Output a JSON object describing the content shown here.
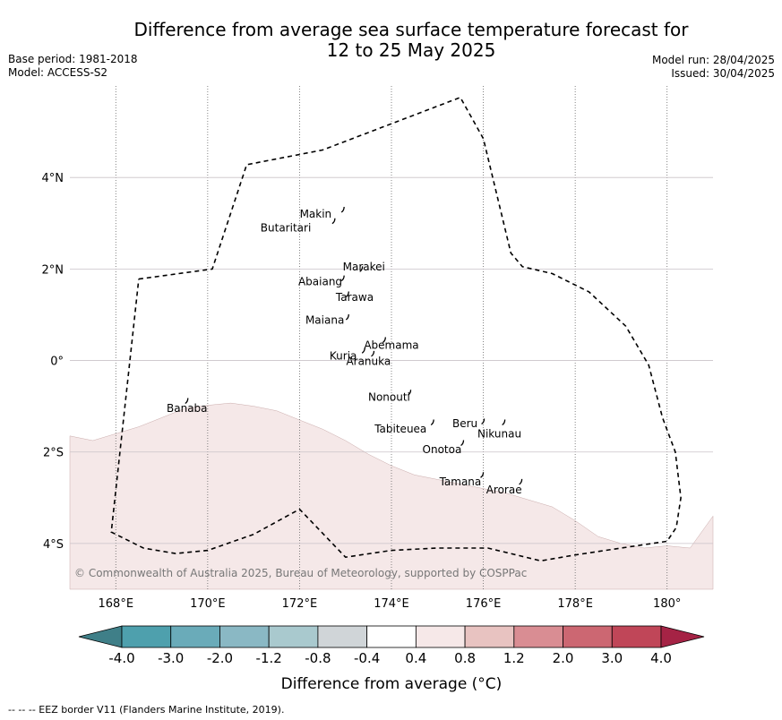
{
  "title_line1": "Difference from average sea surface temperature forecast for",
  "title_line2": "12 to 25 May 2025",
  "base_period": "Base period: 1981-2018",
  "model": "Model: ACCESS-S2",
  "model_run": "Model run: 28/04/2025",
  "issued": "Issued: 30/04/2025",
  "copyright": "© Commonwealth of Australia 2025, Bureau of Meteorology, supported by COSPPac",
  "footer": "--  --  -- EEZ border V11 (Flanders Marine Institute, 2019).",
  "colorbar_label": "Difference from average (°C)",
  "colorbar": {
    "ticks": [
      "-4.0",
      "-3.0",
      "-2.0",
      "-1.2",
      "-0.8",
      "-0.4",
      "0.4",
      "0.8",
      "1.2",
      "2.0",
      "3.0",
      "4.0"
    ],
    "colors": [
      "#4ea0ad",
      "#6aabb9",
      "#8ab8c4",
      "#a9c9ce",
      "#d0d5d8",
      "#ffffff",
      "#f6e8e8",
      "#e8c3c1",
      "#d98d93",
      "#cc6772",
      "#c04658"
    ],
    "low_color": "#3f7f88",
    "high_color": "#a52345"
  },
  "map": {
    "lon_range": [
      167,
      181
    ],
    "lat_range": [
      -5,
      6
    ],
    "lon_ticks": [
      {
        "value": 168,
        "label": "168°E"
      },
      {
        "value": 170,
        "label": "170°E"
      },
      {
        "value": 172,
        "label": "172°E"
      },
      {
        "value": 174,
        "label": "174°E"
      },
      {
        "value": 176,
        "label": "176°E"
      },
      {
        "value": 178,
        "label": "178°E"
      },
      {
        "value": 180,
        "label": "180°"
      }
    ],
    "lat_ticks": [
      {
        "value": 4,
        "label": "4°N"
      },
      {
        "value": 2,
        "label": "2°N"
      },
      {
        "value": 0,
        "label": "0°"
      },
      {
        "value": -2,
        "label": "2°S"
      },
      {
        "value": -4,
        "label": "4°S"
      }
    ],
    "anomaly_region": {
      "category": "0.4 to 0.8",
      "color": "#f5e8e8",
      "boundary": [
        [
          167,
          -1.65
        ],
        [
          167.5,
          -1.75
        ],
        [
          168,
          -1.6
        ],
        [
          168.5,
          -1.45
        ],
        [
          169,
          -1.25
        ],
        [
          169.5,
          -1.05
        ],
        [
          170,
          -0.98
        ],
        [
          170.5,
          -0.93
        ],
        [
          171,
          -1.0
        ],
        [
          171.5,
          -1.1
        ],
        [
          172,
          -1.3
        ],
        [
          172.5,
          -1.5
        ],
        [
          173,
          -1.75
        ],
        [
          173.5,
          -2.05
        ],
        [
          174,
          -2.3
        ],
        [
          174.5,
          -2.5
        ],
        [
          175,
          -2.6
        ],
        [
          175.5,
          -2.7
        ],
        [
          176,
          -2.8
        ],
        [
          176.5,
          -2.9
        ],
        [
          177,
          -3.05
        ],
        [
          177.5,
          -3.2
        ],
        [
          178,
          -3.5
        ],
        [
          178.5,
          -3.85
        ],
        [
          179,
          -4.0
        ],
        [
          179.5,
          -4.1
        ],
        [
          180,
          -4.05
        ],
        [
          180.5,
          -4.1
        ],
        [
          181,
          -3.4
        ]
      ]
    },
    "eez_border": [
      [
        168.5,
        1.78
      ],
      [
        170.1,
        2.0
      ],
      [
        170.85,
        4.28
      ],
      [
        172.5,
        4.6
      ],
      [
        175.5,
        5.75
      ],
      [
        176.0,
        4.85
      ],
      [
        176.6,
        2.35
      ],
      [
        176.85,
        2.05
      ],
      [
        177.5,
        1.9
      ],
      [
        178.3,
        1.5
      ],
      [
        179.1,
        0.75
      ],
      [
        179.6,
        -0.1
      ],
      [
        179.9,
        -1.25
      ],
      [
        180.18,
        -2.0
      ],
      [
        180.3,
        -3.0
      ],
      [
        180.2,
        -3.65
      ],
      [
        180.0,
        -3.95
      ],
      [
        179.0,
        -4.1
      ],
      [
        178.0,
        -4.25
      ],
      [
        177.25,
        -4.38
      ],
      [
        176.1,
        -4.1
      ],
      [
        175.0,
        -4.1
      ],
      [
        174.0,
        -4.15
      ],
      [
        173.0,
        -4.3
      ],
      [
        172.0,
        -3.25
      ],
      [
        171.0,
        -3.8
      ],
      [
        170.0,
        -4.15
      ],
      [
        169.3,
        -4.22
      ],
      [
        168.6,
        -4.1
      ],
      [
        167.9,
        -3.75
      ],
      [
        168.5,
        1.78
      ]
    ],
    "islands": [
      {
        "name": "Makin",
        "lon": 172.95,
        "lat": 3.3,
        "label_lon": 172.35,
        "label_lat": 3.2
      },
      {
        "name": "Butaritari",
        "lon": 172.75,
        "lat": 3.05,
        "label_lon": 171.7,
        "label_lat": 2.9
      },
      {
        "name": "Marakei",
        "lon": 173.35,
        "lat": 2.0,
        "label_lon": 173.4,
        "label_lat": 2.05
      },
      {
        "name": "Abaiang",
        "lon": 172.95,
        "lat": 1.8,
        "label_lon": 172.45,
        "label_lat": 1.72
      },
      {
        "name": "Tarawa",
        "lon": 173.05,
        "lat": 1.45,
        "label_lon": 173.2,
        "label_lat": 1.38
      },
      {
        "name": "Maiana",
        "lon": 173.05,
        "lat": 0.95,
        "label_lon": 172.55,
        "label_lat": 0.88
      },
      {
        "name": "Abemama",
        "lon": 173.85,
        "lat": 0.45,
        "label_lon": 174.0,
        "label_lat": 0.33
      },
      {
        "name": "Kuria",
        "lon": 173.4,
        "lat": 0.22,
        "label_lon": 172.95,
        "label_lat": 0.1
      },
      {
        "name": "Aranuka",
        "lon": 173.6,
        "lat": 0.15,
        "label_lon": 173.5,
        "label_lat": -0.02
      },
      {
        "name": "Nonouti",
        "lon": 174.4,
        "lat": -0.7,
        "label_lon": 173.95,
        "label_lat": -0.8
      },
      {
        "name": "Banaba",
        "lon": 169.55,
        "lat": -0.88,
        "label_lon": 169.55,
        "label_lat": -1.05
      },
      {
        "name": "Tabiteuea",
        "lon": 174.9,
        "lat": -1.35,
        "label_lon": 174.2,
        "label_lat": -1.5
      },
      {
        "name": "Beru",
        "lon": 176.0,
        "lat": -1.33,
        "label_lon": 175.6,
        "label_lat": -1.38
      },
      {
        "name": "Nikunau",
        "lon": 176.45,
        "lat": -1.35,
        "label_lon": 176.35,
        "label_lat": -1.6
      },
      {
        "name": "Onotoa",
        "lon": 175.55,
        "lat": -1.8,
        "label_lon": 175.1,
        "label_lat": -1.95
      },
      {
        "name": "Tamana",
        "lon": 175.98,
        "lat": -2.5,
        "label_lon": 175.5,
        "label_lat": -2.65
      },
      {
        "name": "Arorae",
        "lon": 176.82,
        "lat": -2.65,
        "label_lon": 176.45,
        "label_lat": -2.83
      }
    ]
  }
}
